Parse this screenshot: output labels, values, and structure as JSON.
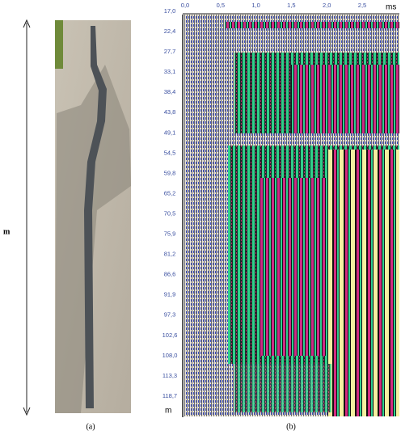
{
  "figure": {
    "left_axis_unit": "m",
    "panel_a_label": "(a)",
    "panel_b_label": "(b)",
    "time_unit": "ms",
    "depth_unit": "m",
    "time_ticks": [
      "0,0",
      "0,5",
      "1,0",
      "1,5",
      "2,0",
      "2,5"
    ],
    "depth_ticks": [
      "17,0",
      "22,4",
      "27,7",
      "33,1",
      "38,4",
      "43,8",
      "49,1",
      "54,5",
      "59,8",
      "65,2",
      "70,5",
      "75,9",
      "81,2",
      "86,6",
      "91,9",
      "97,3",
      "102,6",
      "108,0",
      "113,3",
      "118,7"
    ]
  }
}
